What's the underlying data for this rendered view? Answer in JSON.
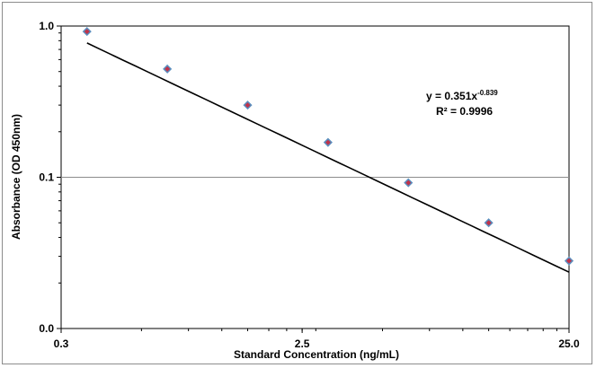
{
  "chart_data": {
    "type": "scatter",
    "title": "",
    "xlabel": "Standard Concentration (ng/mL)",
    "ylabel": "Absorbance (OD 450nm)",
    "x_scale": "log",
    "y_scale": "log",
    "xlim": [
      0.3125,
      25
    ],
    "ylim": [
      0.01,
      1
    ],
    "x_ticks": [
      0.3125,
      2.5,
      25
    ],
    "x_tick_labels": [
      "0.3",
      "2.5",
      "25.0"
    ],
    "y_ticks": [
      0.01,
      0.1,
      1
    ],
    "y_tick_labels": [
      "0.0",
      "0.1",
      "1.0"
    ],
    "grid": "horizontal major",
    "legend": "none",
    "series": [
      {
        "x": [
          0.390625,
          0.78125,
          1.5625,
          3.125,
          6.25,
          12.5,
          25
        ],
        "y": [
          0.92,
          0.52,
          0.3,
          0.17,
          0.092,
          0.05,
          0.028
        ],
        "marker_color": "#c0324a",
        "marker_edge_color": "#5b8fbf"
      }
    ],
    "trendline": {
      "type": "power",
      "a": 0.351,
      "b": -0.839,
      "color": "#000000"
    },
    "annotations": {
      "equation_prefix": "y = 0.351x",
      "equation_exponent": "-0.839",
      "r_squared": "R² = 0.9996"
    }
  }
}
